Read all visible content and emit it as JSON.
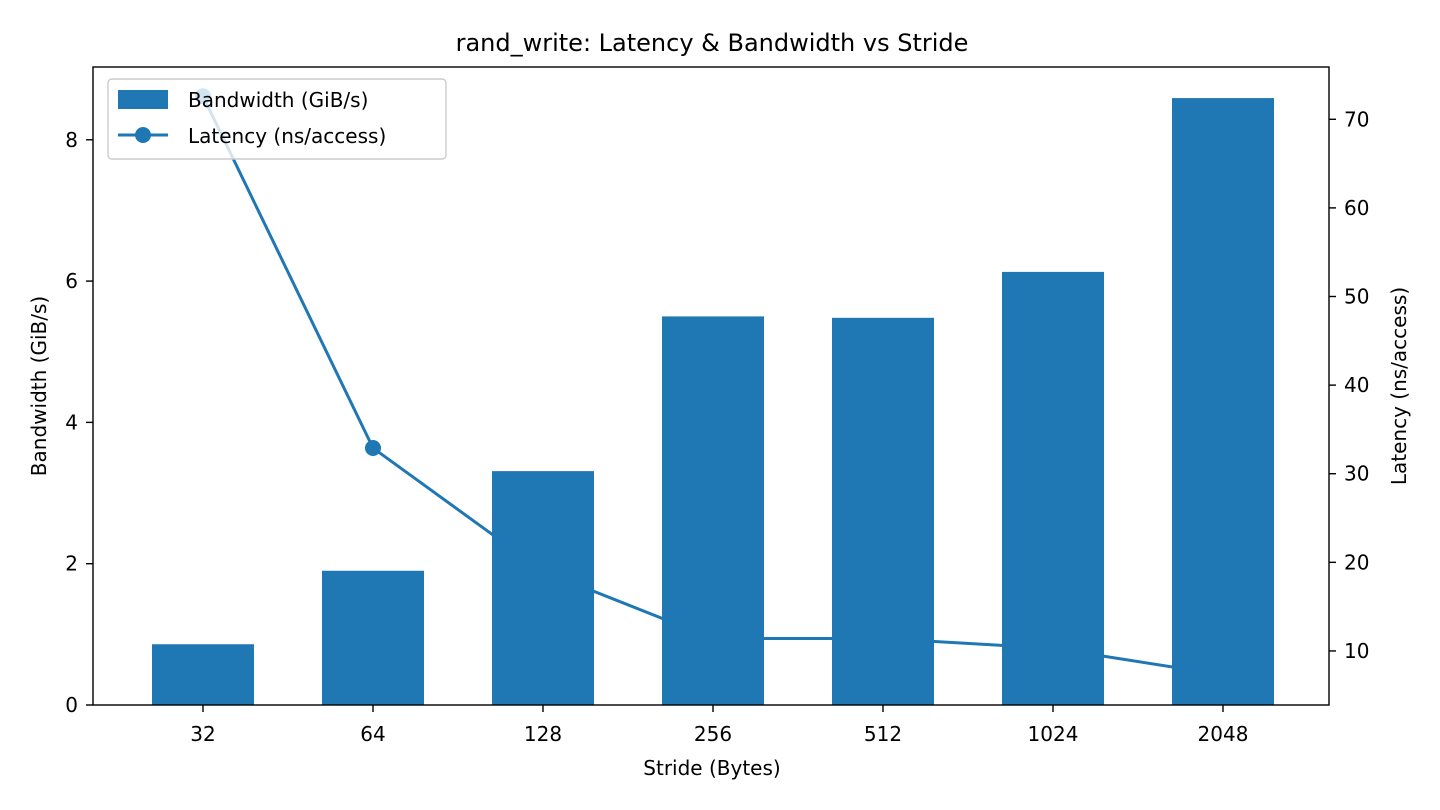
{
  "chart_data": {
    "type": "bar+line",
    "title": "rand_write: Latency & Bandwidth vs Stride",
    "xlabel": "Stride (Bytes)",
    "ylabel_left": "Bandwidth (GiB/s)",
    "ylabel_right": "Latency (ns/access)",
    "categories": [
      "32",
      "64",
      "128",
      "256",
      "512",
      "1024",
      "2048"
    ],
    "ylim_left": [
      0,
      9.03
    ],
    "ylim_right": [
      3.9,
      75.9
    ],
    "yticks_left": [
      0,
      2,
      4,
      6,
      8
    ],
    "yticks_right": [
      10,
      20,
      30,
      40,
      50,
      60,
      70
    ],
    "grid": false,
    "legend_position": "upper-left",
    "series": [
      {
        "name": "Bandwidth (GiB/s)",
        "kind": "bar",
        "axis": "left",
        "color": "#1f77b4",
        "values": [
          0.86,
          1.9,
          3.31,
          5.5,
          5.48,
          6.13,
          8.59
        ]
      },
      {
        "name": "Latency (ns/access)",
        "kind": "line",
        "axis": "right",
        "color": "#1f77b4",
        "marker": "circle",
        "values": [
          72.6,
          32.9,
          19.0,
          11.4,
          11.4,
          10.3,
          7.3
        ]
      }
    ]
  }
}
